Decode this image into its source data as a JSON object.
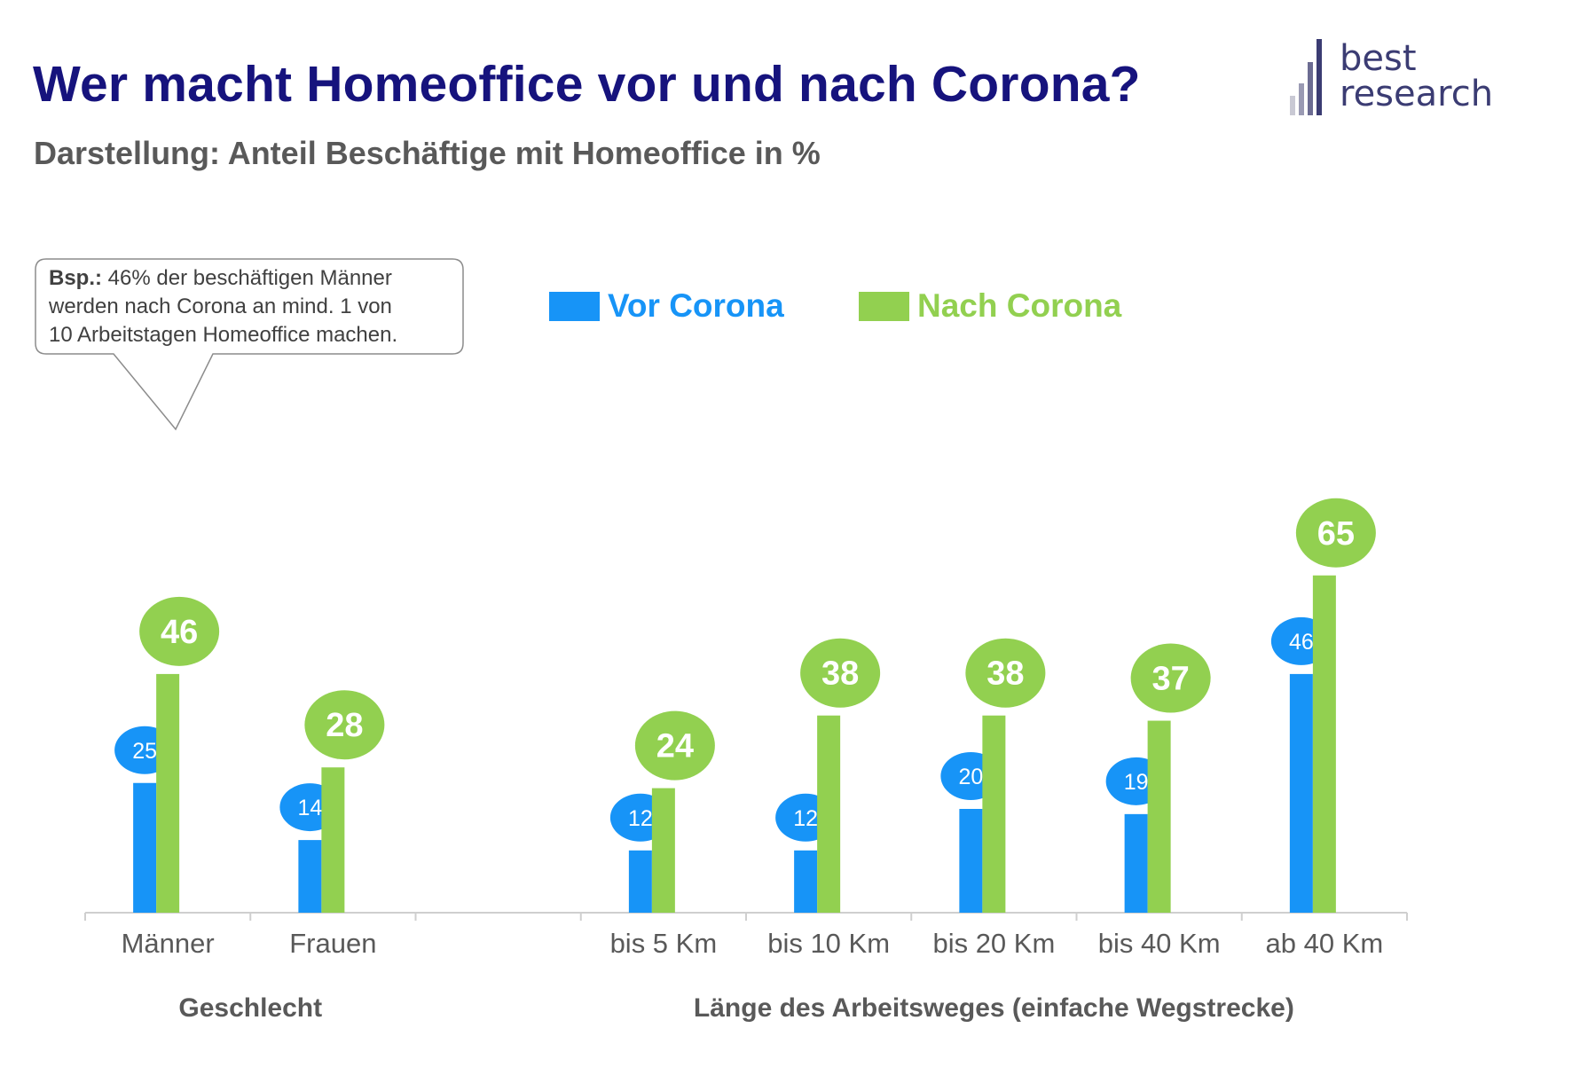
{
  "title": "Wer macht Homeoffice vor und nach Corona?",
  "subtitle": "Darstellung: Anteil Beschäftige mit Homeoffice in %",
  "logo": {
    "line1": "best",
    "line2": "research"
  },
  "callout": {
    "bold": "Bsp.:",
    "lines": [
      " 46% der beschäftigen Männer",
      "werden nach Corona an mind. 1 von",
      "10 Arbeitstagen Homeoffice machen."
    ]
  },
  "colors": {
    "vor": "#1794f7",
    "nach": "#92d050",
    "title": "#16137d",
    "axis": "#cfcfcf",
    "text": "#595959"
  },
  "chart_data": {
    "type": "bar",
    "categories": [
      "Männer",
      "Frauen",
      "",
      "bis 5 Km",
      "bis 10 Km",
      "bis 20 Km",
      "bis 40 Km",
      "ab 40 Km"
    ],
    "series": [
      {
        "name": "Vor Corona",
        "values": [
          25,
          14,
          null,
          12,
          12,
          20,
          19,
          46
        ]
      },
      {
        "name": "Nach Corona",
        "values": [
          46,
          28,
          null,
          24,
          38,
          38,
          37,
          65
        ]
      }
    ],
    "groups": [
      {
        "label": "Geschlecht",
        "categories": [
          "Männer",
          "Frauen"
        ]
      },
      {
        "label": "Länge des Arbeitsweges (einfache Wegstrecke)",
        "categories": [
          "bis 5 Km",
          "bis 10 Km",
          "bis 20 Km",
          "bis 40 Km",
          "ab 40 Km"
        ]
      }
    ],
    "ylim": [
      0,
      70
    ],
    "legend_position": "top"
  }
}
